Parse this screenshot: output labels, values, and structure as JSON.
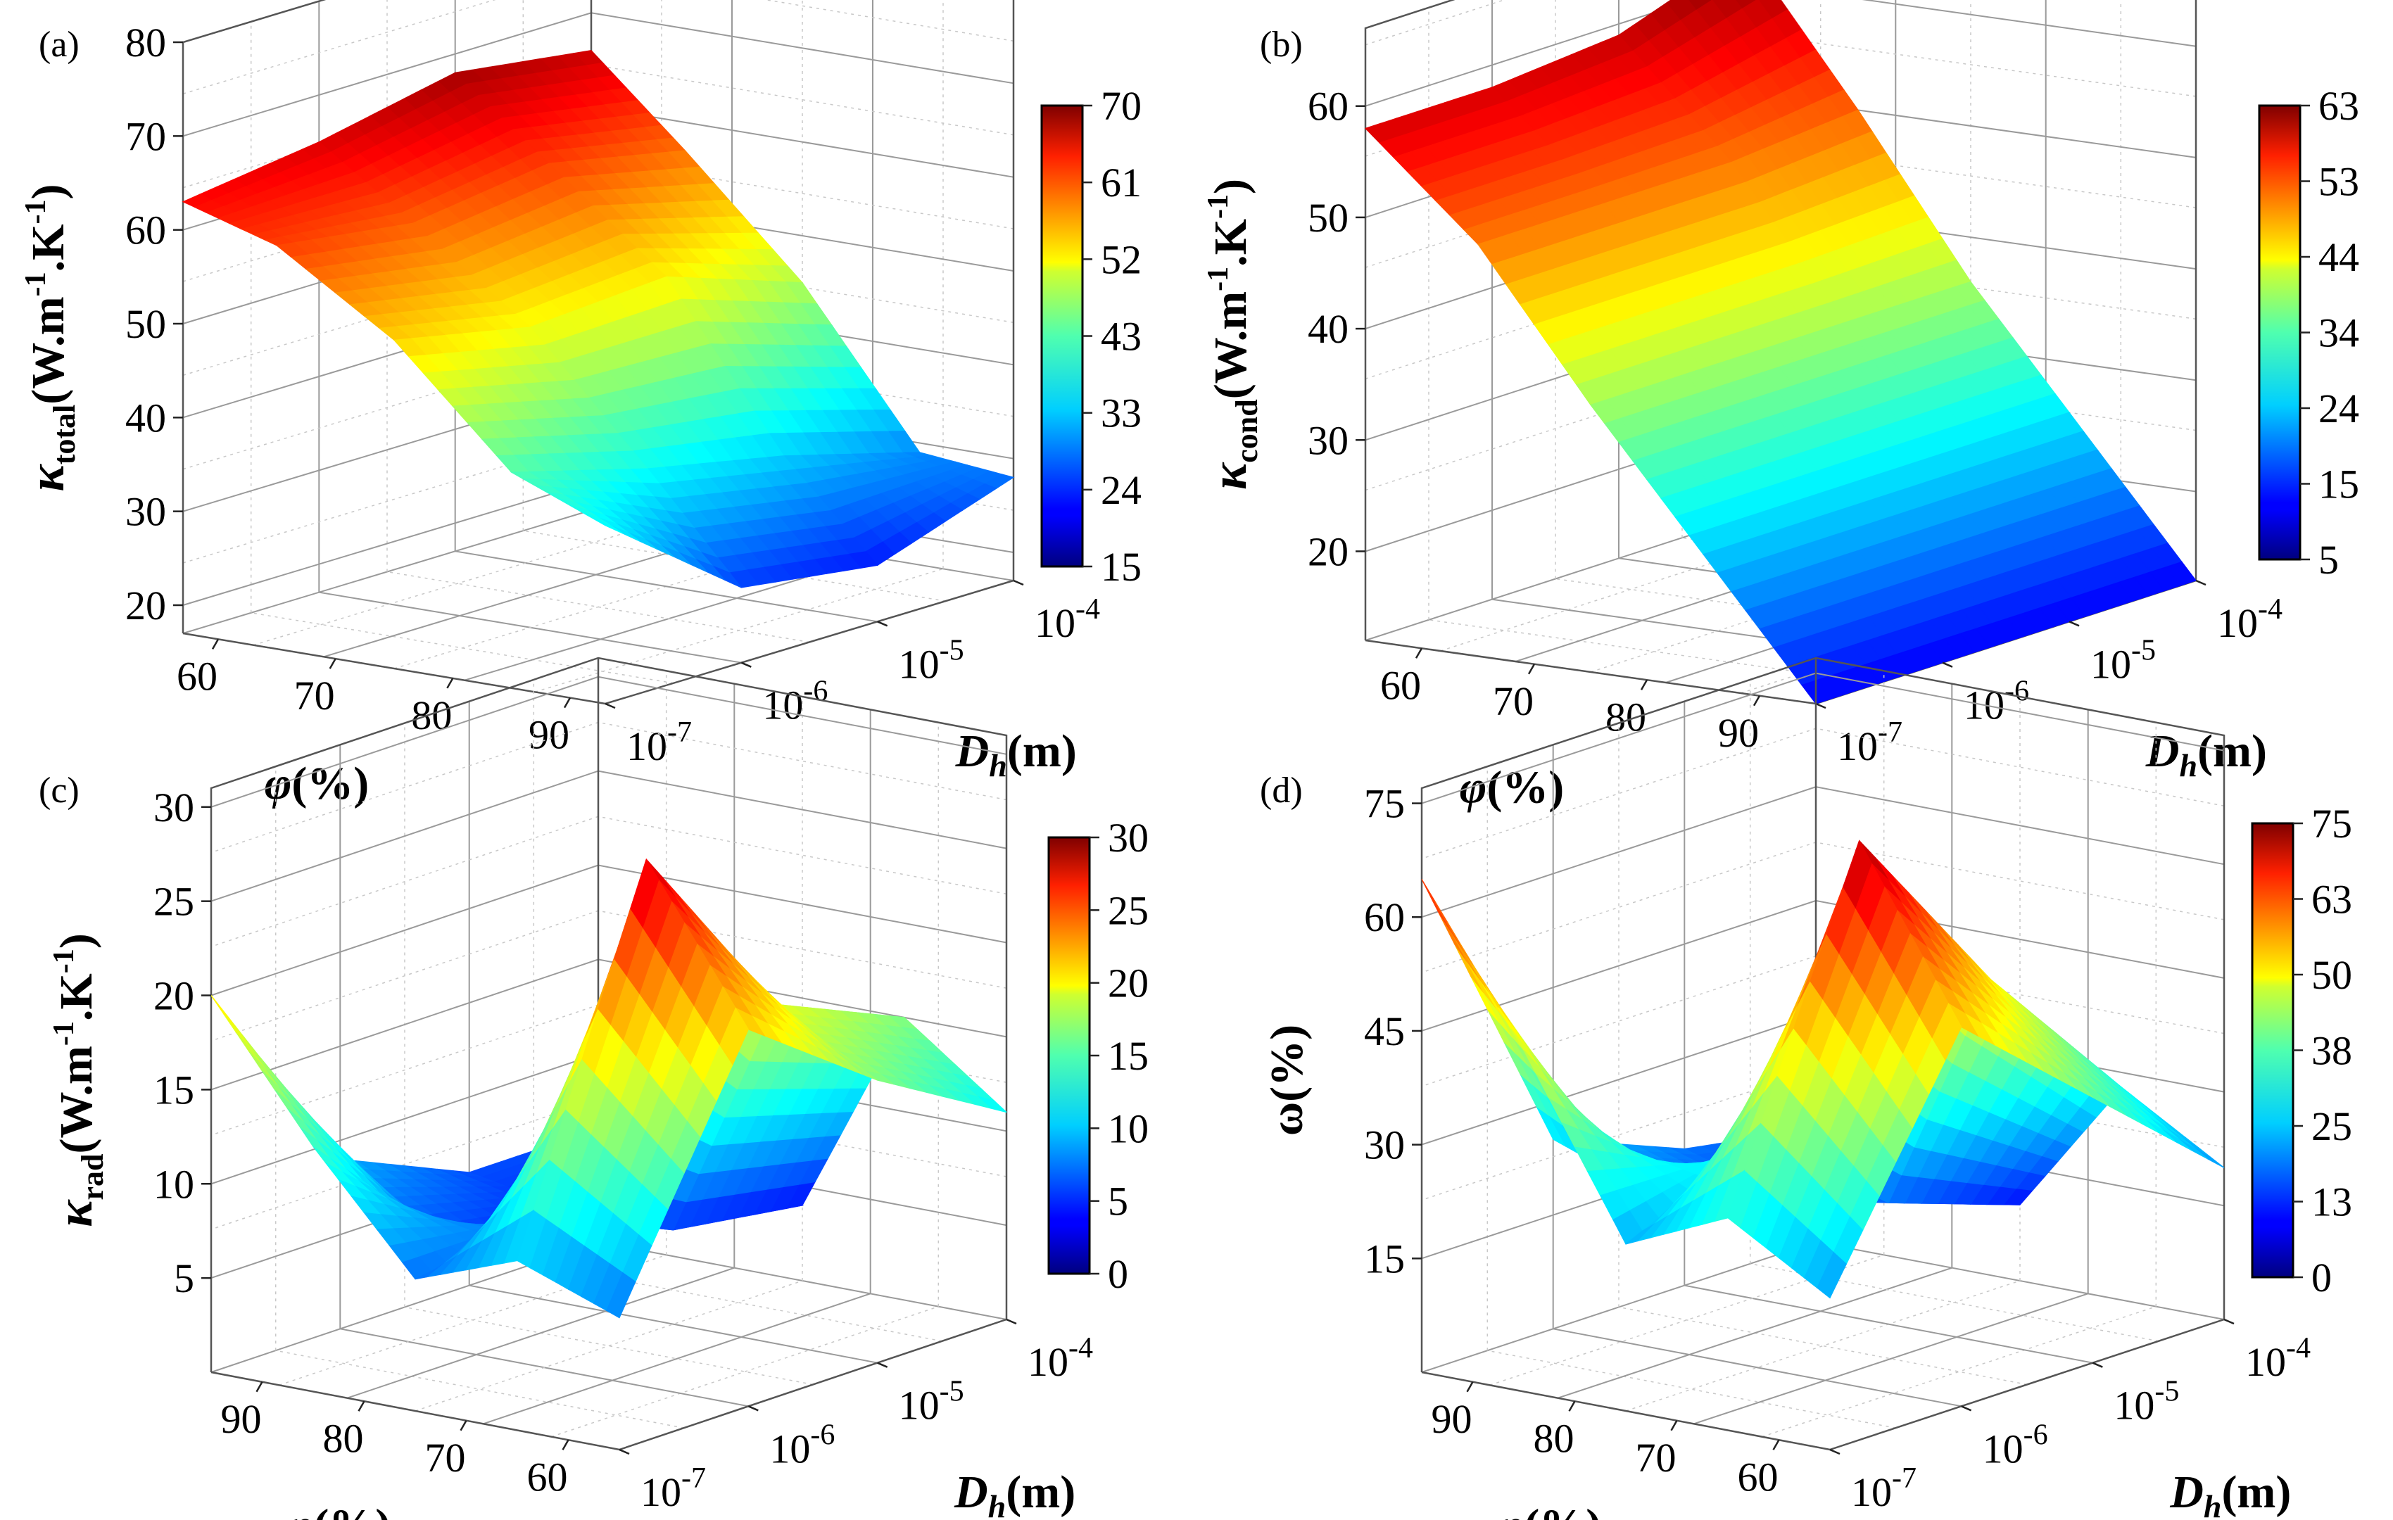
{
  "chart_data": [
    {
      "panel": "(a)",
      "type": "surface3d",
      "zlabel_sym": "κ",
      "zlabel_sub": "total",
      "zlabel_unit": "(W.m",
      "zlabel_sup1": "-1",
      "zlabel_mid": ".K",
      "zlabel_sup2": "-1",
      "zlabel_end": ")",
      "xlabel_sym": "φ",
      "xlabel_unit": "(%)",
      "ylabel_sym": "D",
      "ylabel_sub": "h",
      "ylabel_unit": "(m)",
      "phi_ticks": [
        "60",
        "70",
        "80",
        "90"
      ],
      "dh_ticks": [
        "10",
        "10",
        "10",
        "10"
      ],
      "dh_exps": [
        "-7",
        "-6",
        "-5",
        "-4"
      ],
      "z_ticks": [
        "20",
        "30",
        "40",
        "50",
        "60",
        "70",
        "80"
      ],
      "zlim": [
        17,
        80
      ],
      "colorbar_ticks": [
        "15",
        "24",
        "33",
        "43",
        "52",
        "61",
        "70"
      ],
      "colorbar_range": [
        15,
        70
      ],
      "phi": [
        57,
        65,
        75,
        85,
        93
      ],
      "log_dh": [
        -7,
        -6,
        -5,
        -4
      ],
      "values": [
        [
          63,
          65,
          68,
          66
        ],
        [
          60,
          58,
          60,
          57
        ],
        [
          52,
          49,
          50,
          45
        ],
        [
          40,
          36,
          33,
          29
        ],
        [
          36,
          25,
          23,
          28
        ]
      ]
    },
    {
      "panel": "(b)",
      "type": "surface3d",
      "zlabel_sym": "κ",
      "zlabel_sub": "cond",
      "zlabel_unit": "(W.m",
      "zlabel_sup1": "-1",
      "zlabel_mid": ".K",
      "zlabel_sup2": "-1",
      "zlabel_end": ")",
      "xlabel_sym": "φ",
      "xlabel_unit": "(%)",
      "ylabel_sym": "D",
      "ylabel_sub": "h",
      "ylabel_unit": "(m)",
      "phi_ticks": [
        "60",
        "70",
        "80",
        "90"
      ],
      "dh_ticks": [
        "10",
        "10",
        "10",
        "10"
      ],
      "dh_exps": [
        "-7",
        "-6",
        "-5",
        "-4"
      ],
      "z_ticks": [
        "20",
        "30",
        "40",
        "50",
        "60"
      ],
      "zlim": [
        12,
        67
      ],
      "colorbar_ticks": [
        "5",
        "15",
        "24",
        "34",
        "44",
        "53",
        "63"
      ],
      "colorbar_range": [
        5,
        63
      ],
      "phi": [
        55,
        65,
        75,
        85,
        95
      ],
      "log_dh": [
        -7,
        -6,
        -5,
        -4
      ],
      "values": [
        [
          58,
          58,
          59,
          63
        ],
        [
          49,
          49,
          49,
          50
        ],
        [
          36,
          36,
          36,
          36
        ],
        [
          24,
          24,
          24,
          24
        ],
        [
          12,
          12,
          12,
          12
        ]
      ]
    },
    {
      "panel": "(c)",
      "type": "surface3d",
      "zlabel_sym": "κ",
      "zlabel_sub": "rad",
      "zlabel_unit": "(W.m",
      "zlabel_sup1": "-1",
      "zlabel_mid": ".K",
      "zlabel_sup2": "-1",
      "zlabel_end": ")",
      "xlabel_sym": "φ",
      "xlabel_unit": "(%)",
      "ylabel_sym": "D",
      "ylabel_sub": "h",
      "ylabel_unit": "(m)",
      "phi_ticks": [
        "90",
        "80",
        "70",
        "60"
      ],
      "dh_ticks": [
        "10",
        "10",
        "10",
        "10"
      ],
      "dh_exps": [
        "-7",
        "-6",
        "-5",
        "-4"
      ],
      "z_ticks": [
        "5",
        "10",
        "15",
        "20",
        "25",
        "30"
      ],
      "zlim": [
        0,
        31
      ],
      "colorbar_ticks": [
        "0",
        "5",
        "10",
        "15",
        "20",
        "25",
        "30"
      ],
      "colorbar_range": [
        0,
        30
      ],
      "phi": [
        95,
        85,
        75,
        65,
        55
      ],
      "log_dh": [
        -7,
        -6,
        -5,
        -4
      ],
      "values": [
        [
          20,
          9,
          6,
          6
        ],
        [
          13,
          6,
          5,
          5
        ],
        [
          7,
          8,
          5,
          4
        ],
        [
          9,
          28,
          18,
          15
        ],
        [
          7,
          20,
          15,
          11
        ]
      ]
    },
    {
      "panel": "(d)",
      "type": "surface3d",
      "zlabel_sym": "",
      "zlabel_sub": "",
      "zlabel_unit": "ω(%)",
      "zlabel_sup1": "",
      "zlabel_mid": "",
      "zlabel_sup2": "",
      "zlabel_end": "",
      "xlabel_sym": "φ",
      "xlabel_unit": "(%)",
      "ylabel_sym": "D",
      "ylabel_sub": "h",
      "ylabel_unit": "(m)",
      "phi_ticks": [
        "90",
        "80",
        "70",
        "60"
      ],
      "dh_ticks": [
        "10",
        "10",
        "10",
        "10"
      ],
      "dh_exps": [
        "-7",
        "-6",
        "-5",
        "-4"
      ],
      "z_ticks": [
        "15",
        "30",
        "45",
        "60",
        "75"
      ],
      "zlim": [
        0,
        77
      ],
      "colorbar_ticks": [
        "0",
        "13",
        "25",
        "38",
        "50",
        "63",
        "75"
      ],
      "colorbar_range": [
        0,
        75
      ],
      "phi": [
        95,
        85,
        75,
        65,
        55
      ],
      "log_dh": [
        -7,
        -6,
        -5,
        -4
      ],
      "values": [
        [
          65,
          25,
          18,
          15
        ],
        [
          45,
          20,
          14,
          12
        ],
        [
          22,
          30,
          16,
          10
        ],
        [
          28,
          72,
          48,
          28
        ],
        [
          20,
          50,
          35,
          20
        ]
      ]
    }
  ]
}
